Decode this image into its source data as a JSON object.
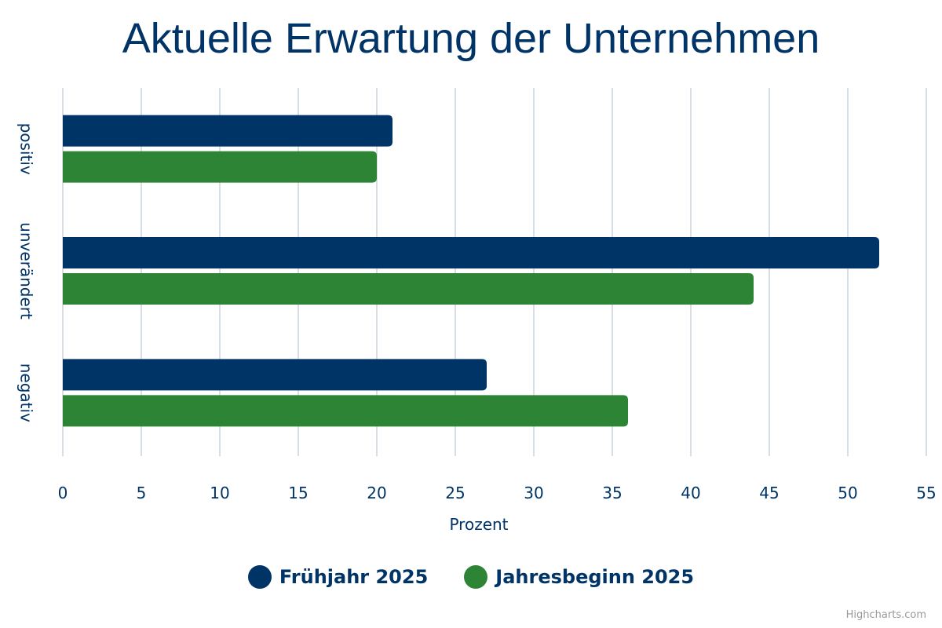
{
  "title": "Aktuelle Erwartung der Unternehmen",
  "credits": "Highcharts.com",
  "colors": {
    "series1": "#003366",
    "series2": "#2e8435",
    "grid": "#c9d3e0",
    "text": "#003366"
  },
  "legend": {
    "placement": "bottom-center"
  },
  "chart_data": {
    "type": "bar",
    "orientation": "horizontal",
    "title": "Aktuelle Erwartung der Unternehmen",
    "categories": [
      "positiv",
      "unverändert",
      "negativ"
    ],
    "series": [
      {
        "name": "Frühjahr 2025",
        "values": [
          21,
          52,
          27
        ]
      },
      {
        "name": "Jahresbeginn 2025",
        "values": [
          20,
          44,
          36
        ]
      }
    ],
    "xlabel": "Prozent",
    "ylabel": "",
    "xlim": [
      0,
      55
    ],
    "ticks": [
      0,
      5,
      10,
      15,
      20,
      25,
      30,
      35,
      40,
      45,
      50,
      55
    ],
    "grid": true
  }
}
